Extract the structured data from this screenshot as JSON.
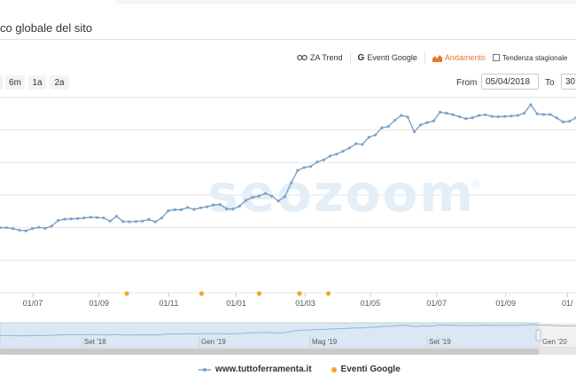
{
  "header": {
    "title": "co globale del sito"
  },
  "toolbar": {
    "za_trend": "ZA Trend",
    "eventi_google": "Eventi Google",
    "andamento": "Andamento",
    "tendenza": "Tendenza stagionale"
  },
  "zoom": [
    "6m",
    "1a",
    "2a"
  ],
  "range": {
    "from_label": "From",
    "from_value": "05/04/2018",
    "to_label": "To",
    "to_value": "30"
  },
  "watermark": "seozoom",
  "colors": {
    "line": "#7fa1c6",
    "event": "#f5a623",
    "grid": "#e6e6e6",
    "navigator_fill": "#dbe7f5",
    "accent": "#e8772e"
  },
  "chart_data": {
    "type": "line",
    "series": [
      {
        "name": "www.tuttoferramenta.it",
        "values": [
          2.0,
          2.0,
          1.97,
          1.92,
          1.9,
          1.97,
          2.01,
          1.98,
          2.05,
          2.22,
          2.26,
          2.27,
          2.28,
          2.3,
          2.32,
          2.31,
          2.3,
          2.2,
          2.35,
          2.19,
          2.18,
          2.19,
          2.2,
          2.25,
          2.18,
          2.3,
          2.52,
          2.55,
          2.55,
          2.62,
          2.56,
          2.61,
          2.64,
          2.7,
          2.71,
          2.58,
          2.57,
          2.66,
          2.84,
          2.93,
          2.97,
          3.05,
          2.97,
          2.82,
          2.95,
          3.38,
          3.76,
          3.85,
          3.88,
          4.02,
          4.08,
          4.2,
          4.26,
          4.35,
          4.45,
          4.58,
          4.56,
          4.78,
          4.85,
          5.07,
          5.11,
          5.3,
          5.45,
          5.4,
          4.95,
          5.16,
          5.23,
          5.28,
          5.55,
          5.52,
          5.47,
          5.41,
          5.35,
          5.38,
          5.45,
          5.47,
          5.42,
          5.41,
          5.42,
          5.43,
          5.45,
          5.52,
          5.78,
          5.5,
          5.48,
          5.48,
          5.38,
          5.25,
          5.27,
          5.38
        ]
      },
      {
        "name": "Eventi Google",
        "values": [
          0.22,
          0.35,
          0.45,
          0.52,
          0.57
        ]
      }
    ],
    "x_range": [
      0.0,
      1.0
    ],
    "x_ticks": [
      "01/07",
      "01/09",
      "01/11",
      "01/01",
      "01/03",
      "01/05",
      "01/07",
      "01/09",
      "01/"
    ],
    "navigator_labels": [
      "Set '18",
      "Gen '19",
      "Mag '19",
      "Set '19",
      "Gen '20"
    ],
    "ylim": [
      0,
      6
    ],
    "grid": true,
    "legend": "bottom-center"
  }
}
